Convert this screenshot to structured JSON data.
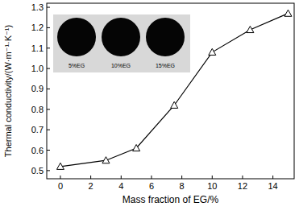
{
  "chart_data": {
    "type": "line",
    "x_label": "Mass fraction of EG/%",
    "y_label": "Thermal conductivity/(W·m⁻¹·K⁻¹)",
    "x": [
      0,
      3,
      5,
      7.5,
      10,
      12.5,
      15
    ],
    "values": [
      0.52,
      0.55,
      0.61,
      0.82,
      1.08,
      1.19,
      1.27
    ],
    "color": "#000000",
    "marker": "triangle",
    "xlim": [
      -0.9,
      15.4
    ],
    "xticks": [
      0,
      2,
      4,
      6,
      8,
      10,
      12,
      14
    ],
    "ylim": [
      0.46,
      1.32
    ],
    "yticks": [
      0.5,
      0.6,
      0.7,
      0.8,
      0.9,
      {
        "value": 1.0,
        "label": "1.0"
      },
      1.1,
      1.2,
      1.3
    ],
    "annotations": [
      "5%EG",
      "10%EG",
      "15%EG"
    ],
    "grid": false
  }
}
